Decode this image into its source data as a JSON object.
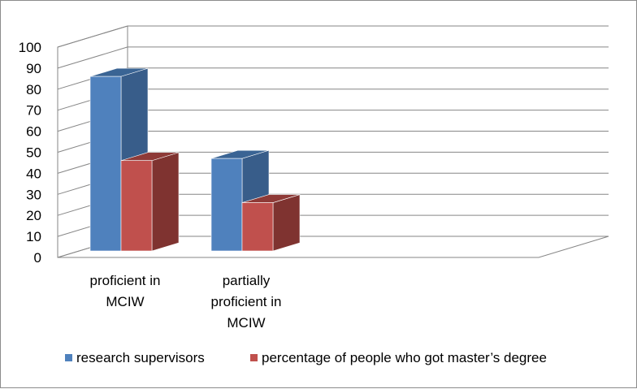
{
  "chart_data": {
    "type": "bar",
    "style": "3d-clustered-column",
    "categories": [
      [
        "proficient in",
        "MCIW"
      ],
      [
        "partially",
        "proficient in",
        "MCIW"
      ]
    ],
    "series": [
      {
        "name": "research supervisors",
        "values": [
          93,
          54
        ],
        "color": "#4f81bd",
        "side_color": "#385d8a",
        "top_color": "#3a6494"
      },
      {
        "name": "percentage of people who got master’s degree",
        "values": [
          53,
          33
        ],
        "color": "#c0504d",
        "side_color": "#7f3330",
        "top_color": "#8e3a37"
      }
    ],
    "ylim": [
      0,
      100
    ],
    "yticks": [
      0,
      10,
      20,
      30,
      40,
      50,
      60,
      70,
      80,
      90,
      100
    ],
    "grid": true,
    "legend_position": "bottom"
  }
}
